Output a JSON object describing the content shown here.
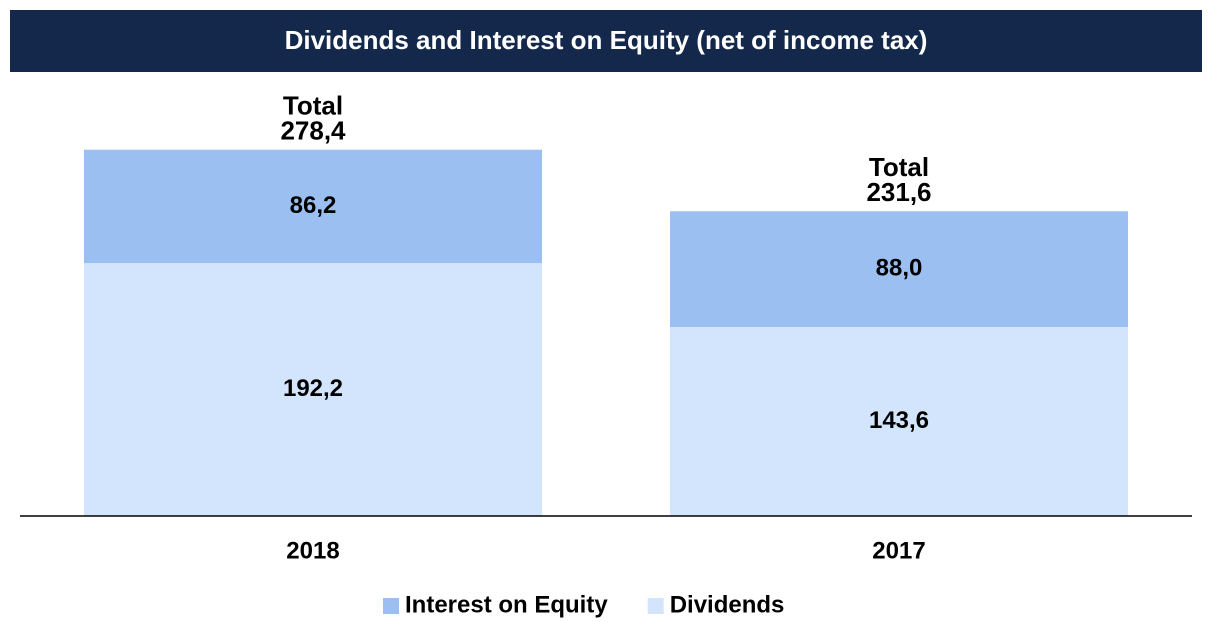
{
  "chart_data": {
    "type": "stacked_bar",
    "title": "Dividends and Interest on Equity (net of income tax)",
    "categories": [
      "2018",
      "2017"
    ],
    "series": [
      {
        "name": "Interest on Equity",
        "color": "#9bbff0",
        "values": [
          86.2,
          88.0
        ],
        "value_labels": [
          "86,2",
          "88,0"
        ]
      },
      {
        "name": "Dividends",
        "color": "#d3e5fc",
        "values": [
          192.2,
          143.6
        ],
        "value_labels": [
          "192,2",
          "143,6"
        ]
      }
    ],
    "total_title": "Total",
    "totals": [
      278.4,
      231.6
    ],
    "total_labels": [
      "278,4",
      "231,6"
    ],
    "ylim": [
      0,
      320
    ],
    "legend": "bottom"
  }
}
